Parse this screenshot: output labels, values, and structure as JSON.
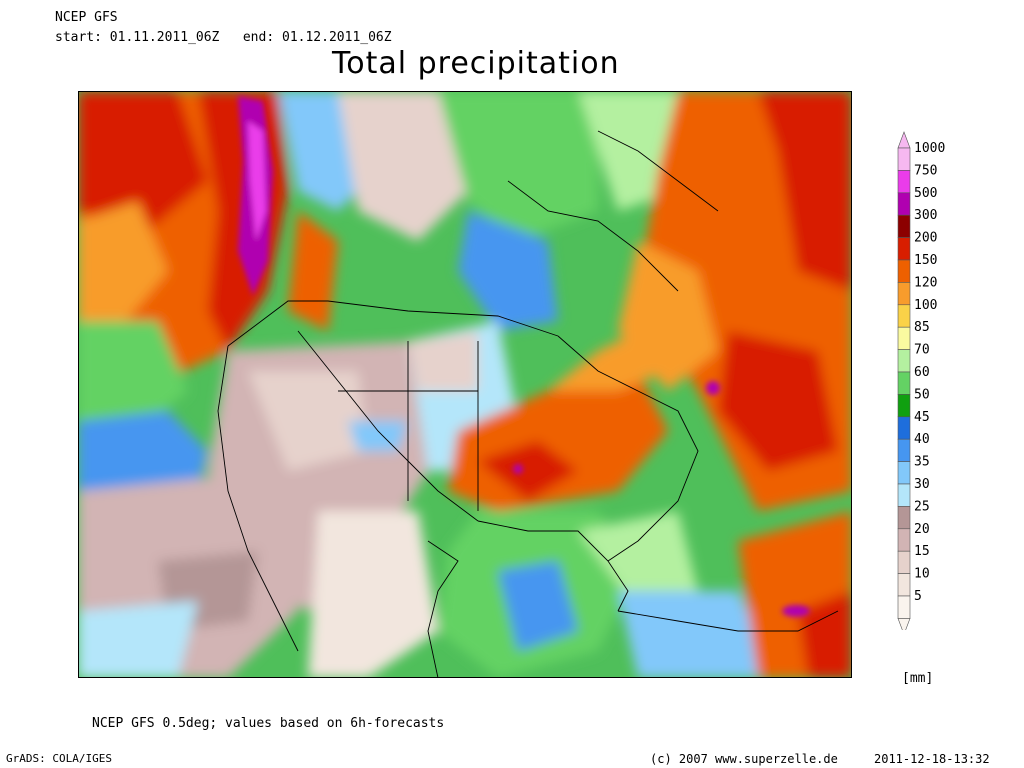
{
  "header": {
    "model": "NCEP GFS",
    "start_label": "start:",
    "start": "01.11.2011_06Z",
    "end_label": "end:",
    "end": "01.12.2011_06Z",
    "title": "Total precipitation"
  },
  "colorbar": {
    "unit": "[mm]",
    "levels": [
      {
        "label": "1000",
        "color": "#f6b8f0"
      },
      {
        "label": "750",
        "color": "#ea3cea"
      },
      {
        "label": "500",
        "color": "#b000b0"
      },
      {
        "label": "300",
        "color": "#8c0000"
      },
      {
        "label": "200",
        "color": "#d81e00"
      },
      {
        "label": "150",
        "color": "#ee6000"
      },
      {
        "label": "120",
        "color": "#f89c2c"
      },
      {
        "label": "100",
        "color": "#fad248"
      },
      {
        "label": "85",
        "color": "#fafaa0"
      },
      {
        "label": "70",
        "color": "#b4f0a0"
      },
      {
        "label": "60",
        "color": "#64d264"
      },
      {
        "label": "50",
        "color": "#10a010"
      },
      {
        "label": "45",
        "color": "#1e6edc"
      },
      {
        "label": "40",
        "color": "#4696f0"
      },
      {
        "label": "35",
        "color": "#82c8fa"
      },
      {
        "label": "30",
        "color": "#b4e6fa"
      },
      {
        "label": "25",
        "color": "#b49696"
      },
      {
        "label": "20",
        "color": "#d2b4b4"
      },
      {
        "label": "15",
        "color": "#e6d2cc"
      },
      {
        "label": "10",
        "color": "#f2e6de"
      },
      {
        "label": "5",
        "color": "#faf4ee"
      }
    ]
  },
  "footer": {
    "note": "NCEP GFS 0.5deg; values based on 6h-forecasts",
    "software": "GrADS: COLA/IGES",
    "copyright": "(c) 2007 www.superzelle.de",
    "timestamp": "2011-12-18-13:32"
  }
}
